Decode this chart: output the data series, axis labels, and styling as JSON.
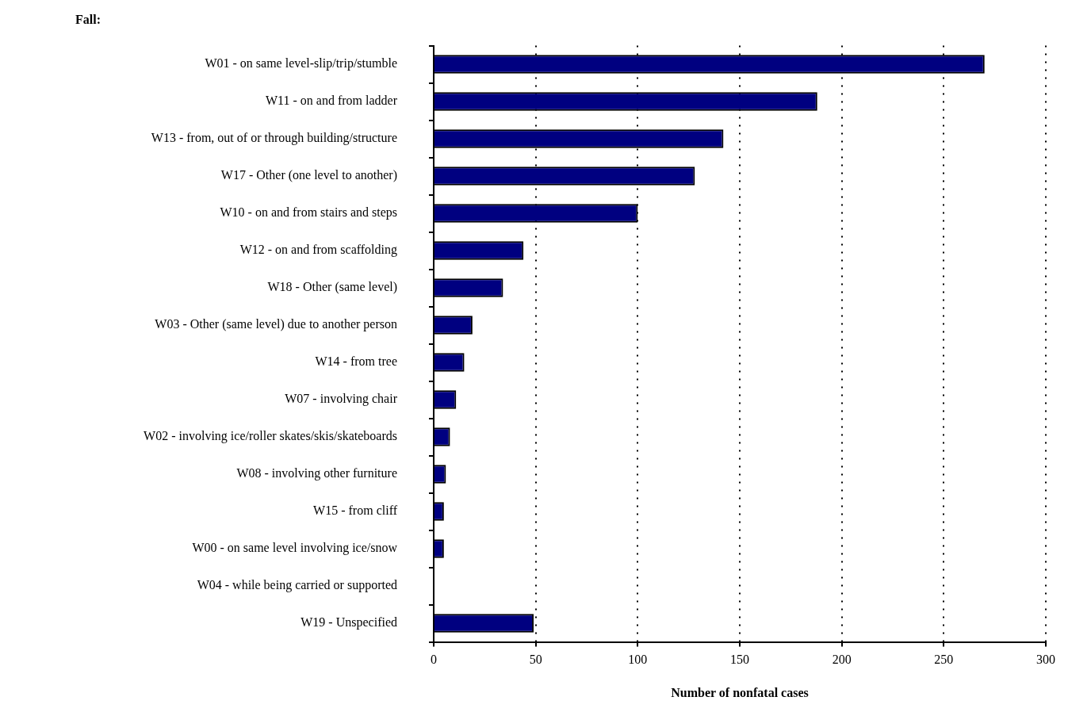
{
  "chart_data": {
    "type": "bar",
    "orientation": "horizontal",
    "title": "Fall:",
    "xlabel": "Number of nonfatal cases",
    "categories": [
      "W01 - on same level-slip/trip/stumble",
      "W11 - on and from ladder",
      "W13 - from, out of or through building/structure",
      "W17 - Other (one level to another)",
      "W10 - on and from stairs and steps",
      "W12 - on and from scaffolding",
      "W18 - Other (same level)",
      "W03 - Other (same level) due to another person",
      "W14 - from tree",
      "W07 - involving chair",
      "W02 - involving ice/roller skates/skis/skateboards",
      "W08 - involving other furniture",
      "W15 - from cliff",
      "W00 - on same level involving ice/snow",
      "W04 - while being carried or supported",
      "W19 - Unspecified"
    ],
    "values": [
      270,
      188,
      142,
      128,
      100,
      44,
      34,
      19,
      15,
      11,
      8,
      6,
      5,
      5,
      0,
      49
    ],
    "color": "#000080",
    "xlim": [
      0,
      300
    ],
    "xticks": [
      0,
      50,
      100,
      150,
      200,
      250,
      300
    ],
    "grid": "x"
  }
}
